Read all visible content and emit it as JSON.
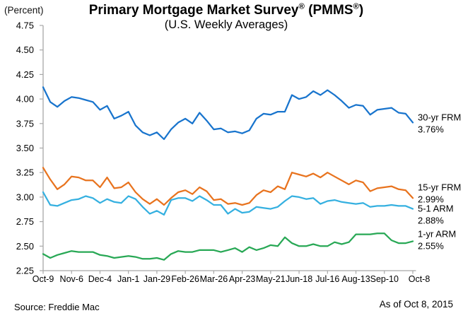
{
  "header": {
    "percent_label": "(Percent)",
    "title": "Primary Mortgage Market Survey® (PMMS®)",
    "subtitle": "(U.S. Weekly Averages)"
  },
  "footer": {
    "source": "Source: Freddie Mac",
    "as_of": "As of Oct 8, 2015"
  },
  "chart_data": {
    "type": "line",
    "title": "Primary Mortgage Market Survey® (PMMS®)",
    "subtitle": "(U.S. Weekly Averages)",
    "ylabel": "(Percent)",
    "ylim": [
      2.25,
      4.75
    ],
    "yticks": [
      2.25,
      2.5,
      2.75,
      3.0,
      3.25,
      3.5,
      3.75,
      4.0,
      4.25,
      4.5,
      4.75
    ],
    "x_labels": [
      "Oct-9",
      "Nov-6",
      "Dec-4",
      "Jan-1",
      "Jan-29",
      "Feb-26",
      "Mar-26",
      "Apr-23",
      "May-21",
      "Jun-18",
      "Jul-16",
      "Aug-13",
      "Sep-10",
      "Oct-8"
    ],
    "x_label_every": 4,
    "n_points": 53,
    "grid": false,
    "legend_position": "right of line ends",
    "axis_color": "#a8a8a8",
    "series": [
      {
        "name": "30-yr FRM",
        "end_label": "3.76%",
        "color": "#1874CD",
        "values": [
          4.12,
          3.97,
          3.92,
          3.98,
          4.02,
          4.01,
          3.99,
          3.97,
          3.89,
          3.93,
          3.8,
          3.83,
          3.87,
          3.73,
          3.66,
          3.63,
          3.66,
          3.59,
          3.69,
          3.76,
          3.8,
          3.75,
          3.86,
          3.78,
          3.69,
          3.7,
          3.66,
          3.67,
          3.65,
          3.68,
          3.8,
          3.85,
          3.84,
          3.87,
          3.87,
          4.04,
          4.0,
          4.02,
          4.08,
          4.04,
          4.09,
          4.04,
          3.98,
          3.91,
          3.94,
          3.93,
          3.84,
          3.89,
          3.9,
          3.91,
          3.86,
          3.85,
          3.76
        ]
      },
      {
        "name": "15-yr FRM",
        "end_label": "2.99%",
        "color": "#E8731E",
        "values": [
          3.3,
          3.18,
          3.08,
          3.13,
          3.21,
          3.2,
          3.17,
          3.17,
          3.1,
          3.2,
          3.09,
          3.1,
          3.15,
          3.05,
          2.98,
          2.93,
          2.98,
          2.92,
          2.99,
          3.05,
          3.07,
          3.03,
          3.1,
          3.06,
          2.97,
          2.98,
          2.93,
          2.94,
          2.92,
          2.94,
          3.02,
          3.07,
          3.05,
          3.11,
          3.08,
          3.25,
          3.23,
          3.21,
          3.24,
          3.2,
          3.25,
          3.21,
          3.17,
          3.13,
          3.17,
          3.15,
          3.06,
          3.09,
          3.1,
          3.11,
          3.08,
          3.07,
          2.99
        ]
      },
      {
        "name": "5-1 ARM",
        "end_label": "2.88%",
        "color": "#35B0E0",
        "values": [
          3.05,
          2.92,
          2.91,
          2.94,
          2.97,
          2.98,
          3.01,
          2.99,
          2.94,
          2.98,
          2.95,
          2.94,
          3.01,
          2.98,
          2.9,
          2.83,
          2.86,
          2.82,
          2.97,
          2.99,
          2.99,
          2.96,
          3.01,
          2.97,
          2.92,
          2.92,
          2.83,
          2.88,
          2.84,
          2.85,
          2.9,
          2.89,
          2.88,
          2.9,
          2.96,
          3.01,
          3.0,
          2.98,
          2.99,
          2.93,
          2.96,
          2.97,
          2.95,
          2.94,
          2.93,
          2.94,
          2.9,
          2.91,
          2.91,
          2.92,
          2.91,
          2.91,
          2.88
        ]
      },
      {
        "name": "1-yr ARM",
        "end_label": "2.55%",
        "color": "#28A855",
        "values": [
          2.42,
          2.38,
          2.41,
          2.43,
          2.45,
          2.44,
          2.44,
          2.44,
          2.41,
          2.4,
          2.38,
          2.39,
          2.4,
          2.39,
          2.37,
          2.37,
          2.38,
          2.36,
          2.42,
          2.45,
          2.44,
          2.44,
          2.46,
          2.46,
          2.46,
          2.44,
          2.46,
          2.48,
          2.44,
          2.49,
          2.46,
          2.48,
          2.51,
          2.5,
          2.59,
          2.53,
          2.5,
          2.5,
          2.52,
          2.5,
          2.5,
          2.54,
          2.52,
          2.54,
          2.62,
          2.62,
          2.62,
          2.63,
          2.63,
          2.56,
          2.53,
          2.53,
          2.55
        ]
      }
    ]
  }
}
